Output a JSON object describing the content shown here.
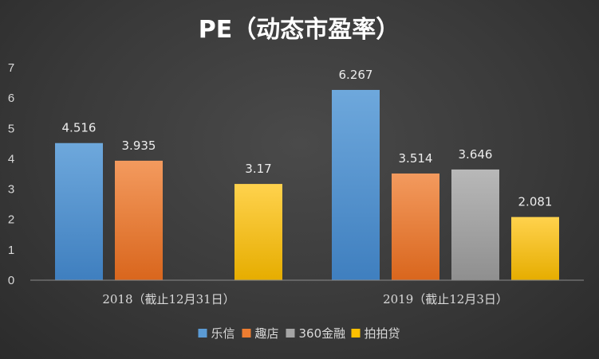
{
  "chart_data": {
    "type": "bar",
    "title": "PE（动态市盈率）",
    "categories": [
      "2018（截止12月31日）",
      "2019（截止12月3日）"
    ],
    "series": [
      {
        "name": "乐信",
        "color": "#5b9bd5",
        "values": [
          4.516,
          6.267
        ],
        "labels": [
          "4.516",
          "6.267"
        ]
      },
      {
        "name": "趣店",
        "color": "#ed7d31",
        "values": [
          3.935,
          3.514
        ],
        "labels": [
          "3.935",
          "3.514"
        ]
      },
      {
        "name": "360金融",
        "color": "#a5a5a5",
        "values": [
          null,
          3.646
        ],
        "labels": [
          "",
          "3.646"
        ]
      },
      {
        "name": "拍拍贷",
        "color": "#ffc000",
        "values": [
          3.17,
          2.081
        ],
        "labels": [
          "3.17",
          "2.081"
        ]
      }
    ],
    "ylim": [
      0,
      7
    ],
    "yticks": [
      "0",
      "1",
      "2",
      "3",
      "4",
      "5",
      "6",
      "7"
    ],
    "grid": false,
    "legend_position": "bottom",
    "xlabel": "",
    "ylabel": ""
  }
}
